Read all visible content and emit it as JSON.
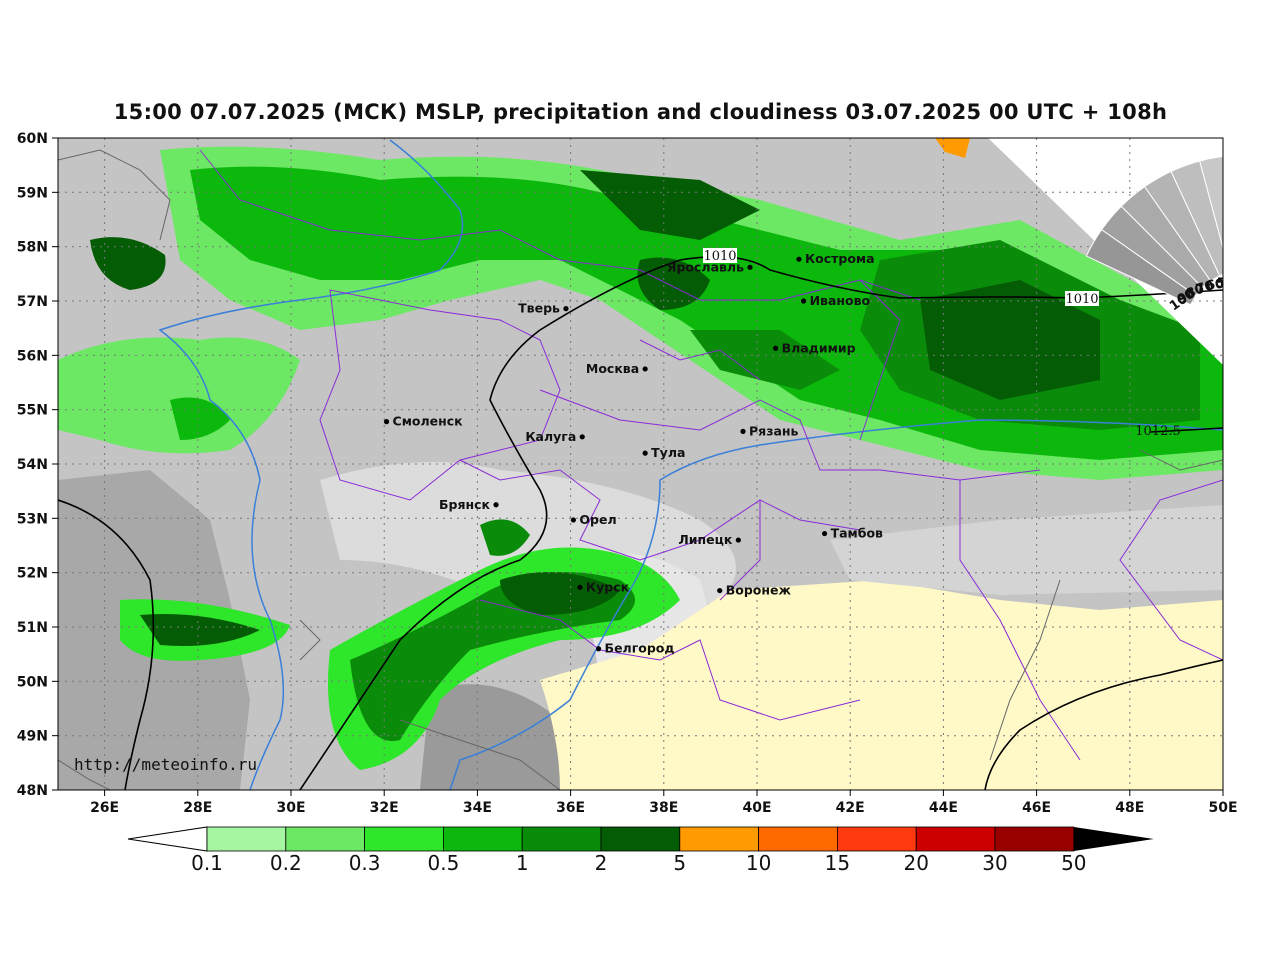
{
  "title": "15:00 07.07.2025 (МСК) MSLP, precipitation and cloudiness 03.07.2025 00 UTC + 108h",
  "watermark": "http://meteoinfo.ru",
  "lat_labels": [
    "60N",
    "59N",
    "58N",
    "57N",
    "56N",
    "55N",
    "54N",
    "53N",
    "52N",
    "51N",
    "50N",
    "49N",
    "48N"
  ],
  "lon_labels": [
    "26E",
    "28E",
    "30E",
    "32E",
    "34E",
    "36E",
    "38E",
    "40E",
    "42E",
    "44E",
    "46E",
    "48E",
    "50E"
  ],
  "cities": [
    {
      "name": "Кострома",
      "lon": 40.9,
      "lat": 57.77
    },
    {
      "name": "Ярославль",
      "lon": 39.85,
      "lat": 57.62
    },
    {
      "name": "Иваново",
      "lon": 41.0,
      "lat": 57.0
    },
    {
      "name": "Тверь",
      "lon": 35.9,
      "lat": 56.86
    },
    {
      "name": "Владимир",
      "lon": 40.4,
      "lat": 56.13
    },
    {
      "name": "Москва",
      "lon": 37.6,
      "lat": 55.75
    },
    {
      "name": "Смоленск",
      "lon": 32.05,
      "lat": 54.78
    },
    {
      "name": "Рязань",
      "lon": 39.7,
      "lat": 54.6
    },
    {
      "name": "Калуга",
      "lon": 36.25,
      "lat": 54.5
    },
    {
      "name": "Тула",
      "lon": 37.6,
      "lat": 54.2
    },
    {
      "name": "Брянск",
      "lon": 34.4,
      "lat": 53.25
    },
    {
      "name": "Орел",
      "lon": 36.06,
      "lat": 52.97
    },
    {
      "name": "Липецк",
      "lon": 39.6,
      "lat": 52.6
    },
    {
      "name": "Тамбов",
      "lon": 41.45,
      "lat": 52.72
    },
    {
      "name": "Курск",
      "lon": 36.2,
      "lat": 51.73
    },
    {
      "name": "Воронеж",
      "lon": 39.2,
      "lat": 51.67
    },
    {
      "name": "Белгород",
      "lon": 36.6,
      "lat": 50.6
    }
  ],
  "isobar_labels": [
    "1010",
    "1010",
    "1012.5"
  ],
  "cloud_scale": [
    "100",
    "90",
    "80",
    "70",
    "60",
    "50",
    "40",
    "30",
    "20"
  ],
  "precip_scale": {
    "labels": [
      "0.1",
      "0.2",
      "0.3",
      "0.5",
      "1",
      "2",
      "5",
      "10",
      "15",
      "20",
      "30",
      "50"
    ],
    "colors": [
      "#a6f5a0",
      "#6de865",
      "#2ee62a",
      "#0cb80c",
      "#0a8c0a",
      "#045c04",
      "#ff9a00",
      "#ff6a00",
      "#ff3a10",
      "#cc0000",
      "#990000",
      "#000000"
    ]
  }
}
